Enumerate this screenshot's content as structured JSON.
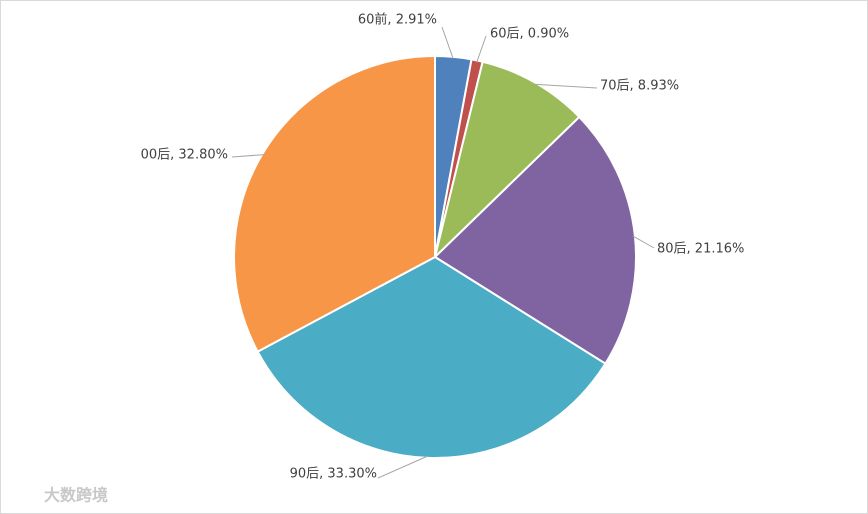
{
  "chart_data": {
    "type": "pie",
    "values": [
      2.91,
      0.9,
      8.93,
      21.16,
      33.3,
      32.8
    ],
    "value_labels": [
      "60前, 2.91%",
      "60后, 0.90%",
      "70后, 8.93%",
      "80后, 21.16%",
      "90后, 33.30%",
      "00后, 32.80%"
    ],
    "colors": [
      "#4f81bd",
      "#c0504d",
      "#9bbb59",
      "#8064a2",
      "#4bacc6",
      "#f79646"
    ],
    "watermark": "大数跨境"
  }
}
